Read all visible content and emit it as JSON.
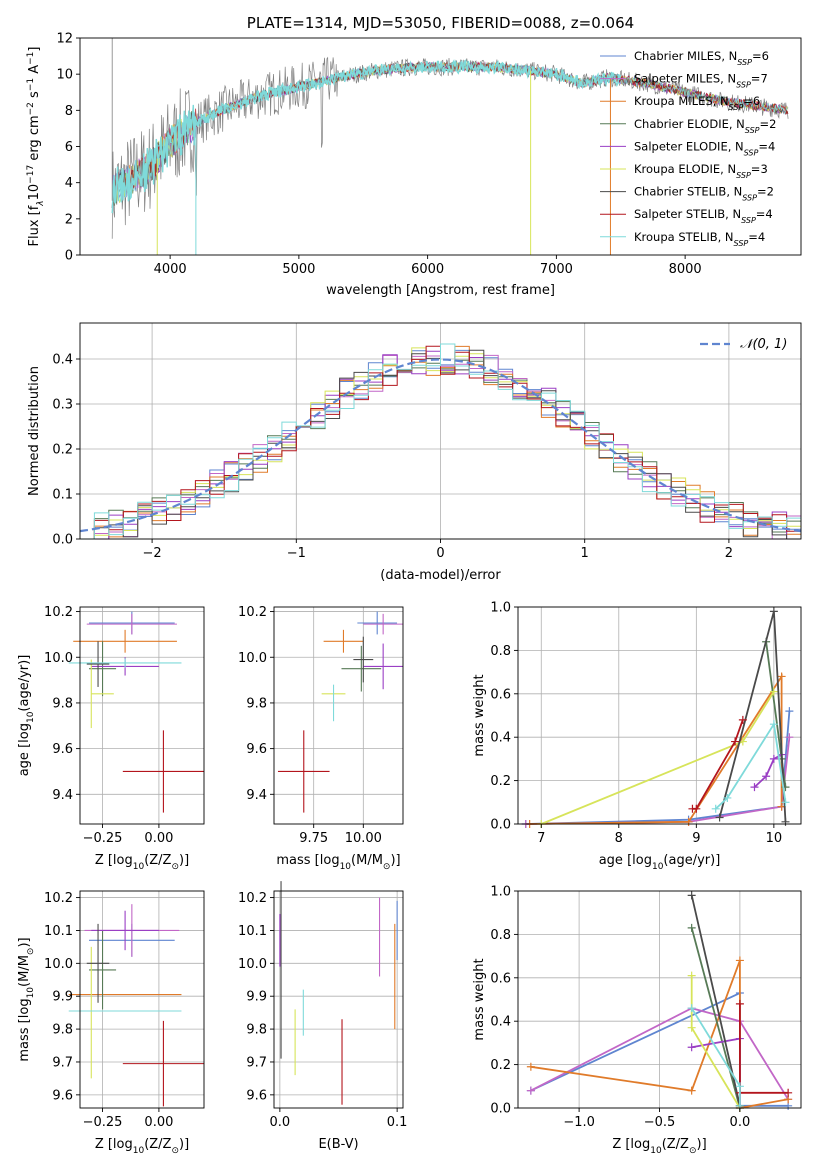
{
  "colors": {
    "Chabrier MILES": "#5f85d0",
    "Salpeter MILES": "#c267c7",
    "Kroupa MILES": "#e07b2a",
    "Chabrier ELODIE": "#577a56",
    "Salpeter ELODIE": "#9a3fc4",
    "Kroupa ELODIE": "#d7e45a",
    "Chabrier STELIB": "#4a4a4a",
    "Salpeter STELIB": "#b3151d",
    "Kroupa STELIB": "#7fdada",
    "data": "#808080",
    "gauss": "#5f85d0"
  },
  "chart_data": [
    {
      "id": "spectrum",
      "type": "line",
      "title": "PLATE=1314, MJD=53050, FIBERID=0088, z=0.064",
      "xlabel": "wavelength [Angstrom, rest frame]",
      "ylabel_parts": [
        "Flux [f",
        "λ",
        "10",
        "−17",
        " erg cm",
        "−2",
        " s",
        "−1",
        " A",
        "−1",
        "]"
      ],
      "xlim": [
        3300,
        8900
      ],
      "ylim": [
        0,
        12
      ],
      "xticks": [
        4000,
        5000,
        6000,
        7000,
        8000
      ],
      "yticks": [
        0,
        2,
        4,
        6,
        8,
        10,
        12
      ],
      "continuum": [
        [
          3550,
          3.5
        ],
        [
          3700,
          4.2
        ],
        [
          3850,
          4.9
        ],
        [
          4000,
          6.2
        ],
        [
          4200,
          7.3
        ],
        [
          4400,
          8.0
        ],
        [
          4700,
          8.8
        ],
        [
          5000,
          9.3
        ],
        [
          5300,
          9.8
        ],
        [
          5600,
          10.2
        ],
        [
          5900,
          10.4
        ],
        [
          6200,
          10.4
        ],
        [
          6500,
          10.4
        ],
        [
          6800,
          10.2
        ],
        [
          7000,
          10.0
        ],
        [
          7200,
          9.5
        ],
        [
          7400,
          9.8
        ],
        [
          7700,
          9.5
        ],
        [
          8000,
          9.0
        ],
        [
          8300,
          8.5
        ],
        [
          8500,
          8.3
        ],
        [
          8700,
          8.1
        ],
        [
          8800,
          8.0
        ]
      ],
      "legend": [
        {
          "label": "Chabrier MILES, N",
          "n": "6"
        },
        {
          "label": "Salpeter MILES, N",
          "n": "7"
        },
        {
          "label": "Kroupa MILES, N",
          "n": "6"
        },
        {
          "label": "Chabrier ELODIE, N",
          "n": "2"
        },
        {
          "label": "Salpeter ELODIE, N",
          "n": "4"
        },
        {
          "label": "Kroupa ELODIE, N",
          "n": "3"
        },
        {
          "label": "Chabrier STELIB, N",
          "n": "2"
        },
        {
          "label": "Salpeter STELIB, N",
          "n": "4"
        },
        {
          "label": "Kroupa STELIB, N",
          "n": "4"
        }
      ],
      "legend_sub": "SSP",
      "legend_placement": "right"
    },
    {
      "id": "residuals",
      "type": "line",
      "xlabel": "(data-model)/error",
      "ylabel": "Normed distribution",
      "xlim": [
        -2.5,
        2.5
      ],
      "ylim": [
        0,
        0.48
      ],
      "xticks": [
        -2,
        -1,
        0,
        1,
        2
      ],
      "xticklabels": [
        "−2",
        "−1",
        "0",
        "1",
        "2"
      ],
      "yticks": [
        0.0,
        0.1,
        0.2,
        0.3,
        0.4
      ],
      "yticklabels": [
        "0.0",
        "0.1",
        "0.2",
        "0.3",
        "0.4"
      ],
      "grid": true,
      "gauss_label": "𝒩(0, 1)",
      "legend_placement": "top-right"
    },
    {
      "id": "age-vs-Z",
      "type": "scatter",
      "xlabel_parts": [
        "Z [log",
        "10",
        "(Z/Z",
        "⊙",
        ")]"
      ],
      "ylabel_parts": [
        "age  [log",
        "10",
        "(age/yr)]"
      ],
      "xlim": [
        -0.35,
        0.2
      ],
      "ylim": [
        9.27,
        10.22
      ],
      "xticks": [
        -0.25,
        0.0
      ],
      "xticklabels": [
        "−0.25",
        "0.00"
      ],
      "yticks": [
        9.4,
        9.6,
        9.8,
        10.0,
        10.2
      ],
      "yticklabels": [
        "9.4",
        "9.6",
        "9.8",
        "10.0",
        "10.2"
      ],
      "grid": true,
      "points": [
        {
          "x": -0.12,
          "y": 10.15,
          "dx": 0.19,
          "dy": 0.05,
          "c": "Chabrier MILES"
        },
        {
          "x": -0.12,
          "y": 10.145,
          "dx": 0.2,
          "dy": 0.045,
          "c": "Salpeter MILES"
        },
        {
          "x": -0.15,
          "y": 10.07,
          "dx": 0.23,
          "dy": 0.05,
          "c": "Kroupa MILES"
        },
        {
          "x": -0.25,
          "y": 9.95,
          "dx": 0.06,
          "dy": 0.12,
          "c": "Chabrier ELODIE"
        },
        {
          "x": -0.15,
          "y": 9.96,
          "dx": 0.15,
          "dy": 0.04,
          "c": "Salpeter ELODIE"
        },
        {
          "x": -0.3,
          "y": 9.84,
          "dx": 0.0,
          "dy": 0.15,
          "c": "Kroupa ELODIE"
        },
        {
          "x": -0.25,
          "y": 9.84,
          "dx": 0.05,
          "dy": 0.0,
          "c": "Kroupa ELODIE"
        },
        {
          "x": -0.27,
          "y": 9.97,
          "dx": 0.05,
          "dy": 0.1,
          "c": "Chabrier STELIB"
        },
        {
          "x": 0.02,
          "y": 9.5,
          "dx": 0.18,
          "dy": 0.18,
          "c": "Salpeter STELIB"
        },
        {
          "x": -0.15,
          "y": 9.975,
          "dx": 0.25,
          "dy": 0.02,
          "c": "Kroupa STELIB"
        }
      ]
    },
    {
      "id": "age-vs-mass",
      "type": "scatter",
      "xlabel_parts": [
        "mass [log",
        "10",
        "(M/M",
        "⊙",
        ")]"
      ],
      "xlim": [
        9.55,
        10.2
      ],
      "ylim": [
        9.27,
        10.22
      ],
      "xticks": [
        9.75,
        10.0
      ],
      "xticklabels": [
        "9.75",
        "10.00"
      ],
      "yticks": [
        9.4,
        9.6,
        9.8,
        10.0,
        10.2
      ],
      "yticklabels": [
        "9.4",
        "9.6",
        "9.8",
        "10.0",
        "10.2"
      ],
      "grid": true,
      "points": [
        {
          "x": 10.07,
          "y": 10.15,
          "dx": 0.1,
          "dy": 0.05,
          "c": "Chabrier MILES"
        },
        {
          "x": 10.1,
          "y": 10.145,
          "dx": 0.1,
          "dy": 0.045,
          "c": "Salpeter MILES"
        },
        {
          "x": 9.9,
          "y": 10.07,
          "dx": 0.1,
          "dy": 0.05,
          "c": "Kroupa MILES"
        },
        {
          "x": 9.99,
          "y": 9.95,
          "dx": 0.1,
          "dy": 0.1,
          "c": "Chabrier ELODIE"
        },
        {
          "x": 10.1,
          "y": 9.96,
          "dx": 0.1,
          "dy": 0.1,
          "c": "Salpeter ELODIE"
        },
        {
          "x": 9.85,
          "y": 9.84,
          "dx": 0.06,
          "dy": 0.0,
          "c": "Kroupa ELODIE"
        },
        {
          "x": 10.0,
          "y": 9.99,
          "dx": 0.05,
          "dy": 0.1,
          "c": "Chabrier STELIB"
        },
        {
          "x": 9.7,
          "y": 9.5,
          "dx": 0.13,
          "dy": 0.18,
          "c": "Salpeter STELIB"
        },
        {
          "x": 9.85,
          "y": 9.8,
          "dx": 0.0,
          "dy": 0.08,
          "c": "Kroupa STELIB"
        }
      ]
    },
    {
      "id": "massweight-vs-age",
      "type": "line",
      "xlabel_parts": [
        "age  [log",
        "10",
        "(age/yr)]"
      ],
      "ylabel": "mass weight",
      "xlim": [
        6.7,
        10.35
      ],
      "ylim": [
        0,
        1
      ],
      "xticks": [
        7,
        8,
        9,
        10
      ],
      "xticklabels": [
        "7",
        "8",
        "9",
        "10"
      ],
      "yticks": [
        0.0,
        0.2,
        0.4,
        0.6,
        0.8,
        1.0
      ],
      "yticklabels": [
        "0.0",
        "0.2",
        "0.4",
        "0.6",
        "0.8",
        "1.0"
      ],
      "grid": true,
      "series": [
        {
          "c": "Chabrier MILES",
          "x": [
            6.8,
            8.9,
            10.1,
            10.2
          ],
          "y": [
            0.0,
            0.02,
            0.08,
            0.52
          ]
        },
        {
          "c": "Salpeter MILES",
          "x": [
            6.8,
            8.9,
            10.1,
            10.2
          ],
          "y": [
            0.0,
            0.01,
            0.08,
            0.4
          ]
        },
        {
          "c": "Kroupa MILES",
          "x": [
            6.85,
            8.9,
            10.1,
            10.1
          ],
          "y": [
            0.0,
            0.01,
            0.68,
            0.08
          ]
        },
        {
          "c": "Chabrier ELODIE",
          "x": [
            9.9,
            10.1,
            10.15
          ],
          "y": [
            0.84,
            0.3,
            0.17
          ]
        },
        {
          "c": "Salpeter ELODIE",
          "x": [
            9.75,
            9.9,
            10.0,
            10.1
          ],
          "y": [
            0.17,
            0.22,
            0.3,
            0.32
          ]
        },
        {
          "c": "Kroupa ELODIE",
          "x": [
            7.0,
            9.6,
            10.0
          ],
          "y": [
            0.0,
            0.38,
            0.61
          ]
        },
        {
          "c": "Chabrier STELIB",
          "x": [
            9.3,
            10.0,
            10.15
          ],
          "y": [
            0.03,
            0.98,
            0.01
          ]
        },
        {
          "c": "Salpeter STELIB",
          "x": [
            8.95,
            9.0,
            9.5,
            9.6
          ],
          "y": [
            0.07,
            0.07,
            0.38,
            0.48
          ]
        },
        {
          "c": "Kroupa STELIB",
          "x": [
            9.25,
            9.4,
            10.0,
            10.15
          ],
          "y": [
            0.07,
            0.12,
            0.46,
            0.1
          ]
        }
      ]
    },
    {
      "id": "mass-vs-Z",
      "type": "scatter",
      "xlabel_parts": [
        "Z [log",
        "10",
        "(Z/Z",
        "⊙",
        ")]"
      ],
      "ylabel_parts": [
        "mass [log",
        "10",
        "(M/M",
        "⊙",
        ")]"
      ],
      "xlim": [
        -0.35,
        0.2
      ],
      "ylim": [
        9.56,
        10.22
      ],
      "xticks": [
        -0.25,
        0.0
      ],
      "xticklabels": [
        "−0.25",
        "0.00"
      ],
      "yticks": [
        9.6,
        9.7,
        9.8,
        9.9,
        10.0,
        10.1,
        10.2
      ],
      "yticklabels": [
        "9.6",
        "9.7",
        "9.8",
        "9.9",
        "10.0",
        "10.1",
        "10.2"
      ],
      "grid": true,
      "points": [
        {
          "x": -0.12,
          "y": 10.07,
          "dx": 0.19,
          "dy": 0.05,
          "c": "Chabrier MILES"
        },
        {
          "x": -0.12,
          "y": 10.1,
          "dx": 0.21,
          "dy": 0.08,
          "c": "Salpeter MILES"
        },
        {
          "x": -0.15,
          "y": 9.905,
          "dx": 0.25,
          "dy": 0.0,
          "c": "Kroupa MILES"
        },
        {
          "x": -0.25,
          "y": 9.98,
          "dx": 0.06,
          "dy": 0.12,
          "c": "Chabrier ELODIE"
        },
        {
          "x": -0.15,
          "y": 10.1,
          "dx": 0.15,
          "dy": 0.06,
          "c": "Salpeter ELODIE"
        },
        {
          "x": -0.3,
          "y": 9.85,
          "dx": 0.0,
          "dy": 0.2,
          "c": "Kroupa ELODIE"
        },
        {
          "x": -0.27,
          "y": 10.0,
          "dx": 0.05,
          "dy": 0.12,
          "c": "Chabrier STELIB"
        },
        {
          "x": 0.02,
          "y": 9.695,
          "dx": 0.18,
          "dy": 0.13,
          "c": "Salpeter STELIB"
        },
        {
          "x": -0.15,
          "y": 9.855,
          "dx": 0.25,
          "dy": 0.0,
          "c": "Kroupa STELIB"
        }
      ]
    },
    {
      "id": "mass-vs-EBV",
      "type": "scatter",
      "xlabel": "E(B-V)",
      "xlim": [
        -0.005,
        0.105
      ],
      "ylim": [
        9.56,
        10.22
      ],
      "xticks": [
        0.0,
        0.1
      ],
      "xticklabels": [
        "0.0",
        "0.1"
      ],
      "yticks": [
        9.6,
        9.7,
        9.8,
        9.9,
        10.0,
        10.1,
        10.2
      ],
      "yticklabels": [
        "9.6",
        "9.7",
        "9.8",
        "9.9",
        "10.0",
        "10.1",
        "10.2"
      ],
      "grid": true,
      "points": [
        {
          "x": 0.001,
          "y": 9.98,
          "dx": 0.0,
          "dy": 0.27,
          "c": "Chabrier STELIB"
        },
        {
          "x": 0.0,
          "y": 10.07,
          "dx": 0.0,
          "dy": 0.08,
          "c": "Salpeter ELODIE"
        },
        {
          "x": 0.013,
          "y": 9.76,
          "dx": 0.0,
          "dy": 0.1,
          "c": "Kroupa ELODIE"
        },
        {
          "x": 0.02,
          "y": 9.85,
          "dx": 0.0,
          "dy": 0.07,
          "c": "Kroupa STELIB"
        },
        {
          "x": 0.053,
          "y": 9.7,
          "dx": 0.0,
          "dy": 0.13,
          "c": "Salpeter STELIB"
        },
        {
          "x": 0.085,
          "y": 10.08,
          "dx": 0.0,
          "dy": 0.12,
          "c": "Salpeter MILES"
        },
        {
          "x": 0.098,
          "y": 9.96,
          "dx": 0.0,
          "dy": 0.16,
          "c": "Kroupa MILES"
        },
        {
          "x": 0.1,
          "y": 10.1,
          "dx": 0.0,
          "dy": 0.09,
          "c": "Chabrier MILES"
        }
      ]
    },
    {
      "id": "massweight-vs-Z",
      "type": "line",
      "xlabel_parts": [
        "Z [log",
        "10",
        "(Z/Z",
        "⊙",
        ")]"
      ],
      "ylabel": "mass weight",
      "xlim": [
        -1.38,
        0.38
      ],
      "ylim": [
        0,
        1
      ],
      "xticks": [
        -1.0,
        -0.5,
        0.0
      ],
      "xticklabels": [
        "−1.0",
        "−0.5",
        "0.0"
      ],
      "yticks": [
        0.0,
        0.2,
        0.4,
        0.6,
        0.8,
        1.0
      ],
      "yticklabels": [
        "0.0",
        "0.2",
        "0.4",
        "0.6",
        "0.8",
        "1.0"
      ],
      "grid": true,
      "series": [
        {
          "c": "Chabrier MILES",
          "x": [
            -1.3,
            0.0,
            0.0,
            0.3
          ],
          "y": [
            0.08,
            0.53,
            0.01,
            0.01
          ]
        },
        {
          "c": "Salpeter MILES",
          "x": [
            -1.3,
            -0.3,
            0.0,
            0.3
          ],
          "y": [
            0.08,
            0.46,
            0.4,
            0.04
          ]
        },
        {
          "c": "Kroupa MILES",
          "x": [
            -1.3,
            -0.3,
            0.0,
            0.0,
            0.3
          ],
          "y": [
            0.19,
            0.08,
            0.68,
            0.0,
            0.04
          ]
        },
        {
          "c": "Chabrier ELODIE",
          "x": [
            -0.3,
            0.0
          ],
          "y": [
            0.83,
            0.0
          ]
        },
        {
          "c": "Salpeter ELODIE",
          "x": [
            -0.3,
            0.0,
            0.0
          ],
          "y": [
            0.28,
            0.32,
            0.0
          ]
        },
        {
          "c": "Kroupa ELODIE",
          "x": [
            -0.3,
            -0.3,
            0.0
          ],
          "y": [
            0.61,
            0.37,
            0.0
          ]
        },
        {
          "c": "Chabrier STELIB",
          "x": [
            -0.3,
            0.0,
            0.0
          ],
          "y": [
            0.98,
            0.01,
            0.01
          ]
        },
        {
          "c": "Salpeter STELIB",
          "x": [
            0.0,
            0.0,
            0.3
          ],
          "y": [
            0.48,
            0.07,
            0.07
          ]
        },
        {
          "c": "Kroupa STELIB",
          "x": [
            -0.3,
            0.0,
            0.0
          ],
          "y": [
            0.46,
            0.1,
            0.01
          ]
        }
      ]
    }
  ]
}
